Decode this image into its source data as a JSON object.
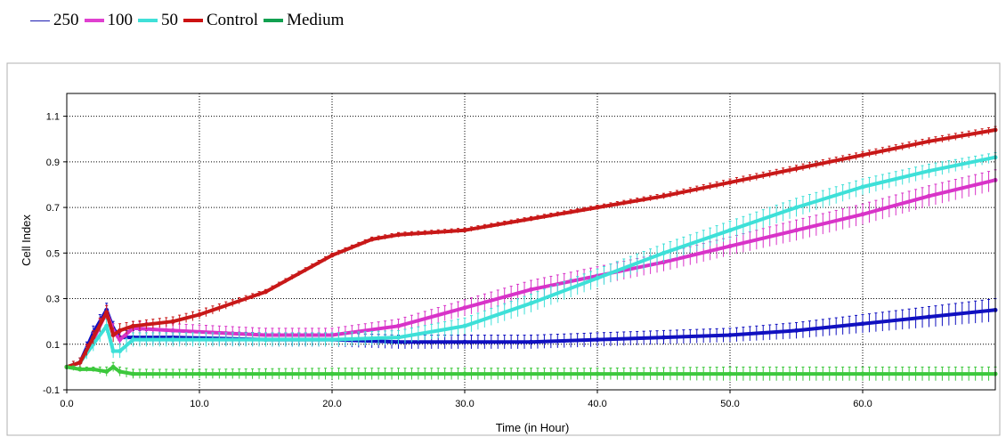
{
  "legend": [
    {
      "label": "250",
      "color": "#1a1ab0",
      "weight": "thin"
    },
    {
      "label": "100",
      "color": "#e040d0",
      "weight": "thick"
    },
    {
      "label": "50",
      "color": "#40e0d8",
      "weight": "thick"
    },
    {
      "label": "Control",
      "color": "#cc1111",
      "weight": "thick"
    },
    {
      "label": "Medium",
      "color": "#11a050",
      "weight": "thick"
    }
  ],
  "chart_data": {
    "type": "line",
    "xlabel": "Time (in Hour)",
    "ylabel": "Cell Index",
    "xlim": [
      0,
      70
    ],
    "ylim": [
      -0.1,
      1.2
    ],
    "xticks": [
      0.0,
      10.0,
      20.0,
      30.0,
      40.0,
      50.0,
      60.0
    ],
    "xtick_labels": [
      "0.0",
      "10.0",
      "20.0",
      "30.0",
      "40.0",
      "50.0",
      "60.0"
    ],
    "yticks": [
      -0.1,
      0.1,
      0.3,
      0.5,
      0.7,
      0.9,
      1.1
    ],
    "ytick_labels": [
      "-0.1",
      "0.1",
      "0.3",
      "0.5",
      "0.7",
      "0.9",
      "1.1"
    ],
    "grid": true,
    "error_bars": true,
    "series": [
      {
        "name": "250",
        "color": "#1010c0",
        "x": [
          0,
          1,
          2,
          3,
          3.5,
          4,
          5,
          8,
          15,
          20,
          25,
          30,
          35,
          40,
          45,
          50,
          55,
          60,
          65,
          70
        ],
        "y": [
          0.0,
          0.02,
          0.15,
          0.25,
          0.17,
          0.13,
          0.13,
          0.13,
          0.12,
          0.12,
          0.11,
          0.11,
          0.11,
          0.12,
          0.13,
          0.14,
          0.16,
          0.19,
          0.22,
          0.25
        ],
        "err": [
          0.01,
          0.02,
          0.03,
          0.03,
          0.03,
          0.03,
          0.03,
          0.03,
          0.03,
          0.03,
          0.03,
          0.03,
          0.03,
          0.03,
          0.03,
          0.03,
          0.035,
          0.04,
          0.045,
          0.05
        ]
      },
      {
        "name": "100",
        "color": "#d833c8",
        "x": [
          0,
          1,
          2,
          3,
          3.5,
          4,
          5,
          8,
          15,
          20,
          25,
          30,
          35,
          40,
          45,
          50,
          55,
          60,
          65,
          70
        ],
        "y": [
          0.0,
          0.02,
          0.12,
          0.24,
          0.16,
          0.12,
          0.17,
          0.16,
          0.14,
          0.14,
          0.18,
          0.26,
          0.34,
          0.4,
          0.46,
          0.53,
          0.6,
          0.67,
          0.75,
          0.82
        ],
        "err": [
          0.01,
          0.02,
          0.03,
          0.03,
          0.03,
          0.03,
          0.03,
          0.03,
          0.03,
          0.03,
          0.03,
          0.035,
          0.04,
          0.04,
          0.04,
          0.04,
          0.045,
          0.045,
          0.045,
          0.045
        ]
      },
      {
        "name": "50",
        "color": "#3ee0d8",
        "x": [
          0,
          1,
          2,
          3,
          3.5,
          4,
          5,
          8,
          15,
          20,
          25,
          30,
          35,
          40,
          45,
          50,
          55,
          60,
          65,
          70
        ],
        "y": [
          0.0,
          0.02,
          0.1,
          0.18,
          0.07,
          0.07,
          0.12,
          0.12,
          0.12,
          0.12,
          0.13,
          0.18,
          0.28,
          0.39,
          0.5,
          0.6,
          0.7,
          0.79,
          0.86,
          0.92
        ],
        "err": [
          0.01,
          0.02,
          0.03,
          0.03,
          0.03,
          0.03,
          0.03,
          0.03,
          0.03,
          0.03,
          0.03,
          0.035,
          0.04,
          0.04,
          0.04,
          0.04,
          0.04,
          0.035,
          0.03,
          0.02
        ]
      },
      {
        "name": "Control",
        "color": "#c81818",
        "x": [
          0,
          1,
          2,
          3,
          3.5,
          4,
          5,
          8,
          10,
          15,
          20,
          23,
          25,
          30,
          35,
          40,
          45,
          50,
          55,
          60,
          65,
          70
        ],
        "y": [
          0.0,
          0.02,
          0.13,
          0.24,
          0.14,
          0.16,
          0.18,
          0.2,
          0.23,
          0.33,
          0.49,
          0.56,
          0.58,
          0.6,
          0.65,
          0.7,
          0.75,
          0.81,
          0.87,
          0.93,
          0.99,
          1.04
        ],
        "err": [
          0.01,
          0.02,
          0.03,
          0.03,
          0.03,
          0.03,
          0.02,
          0.02,
          0.02,
          0.01,
          0.01,
          0.01,
          0.01,
          0.01,
          0.01,
          0.01,
          0.012,
          0.015,
          0.015,
          0.015,
          0.015,
          0.015
        ]
      },
      {
        "name": "Medium",
        "color": "#3cc83c",
        "x": [
          0,
          1,
          2,
          3,
          3.5,
          4,
          5,
          10,
          20,
          30,
          40,
          50,
          60,
          70
        ],
        "y": [
          0.0,
          -0.01,
          -0.01,
          -0.02,
          0.0,
          -0.02,
          -0.03,
          -0.03,
          -0.03,
          -0.03,
          -0.03,
          -0.03,
          -0.03,
          -0.03
        ],
        "err": [
          0.01,
          0.01,
          0.01,
          0.02,
          0.02,
          0.02,
          0.02,
          0.02,
          0.025,
          0.025,
          0.025,
          0.03,
          0.03,
          0.03
        ]
      }
    ]
  }
}
